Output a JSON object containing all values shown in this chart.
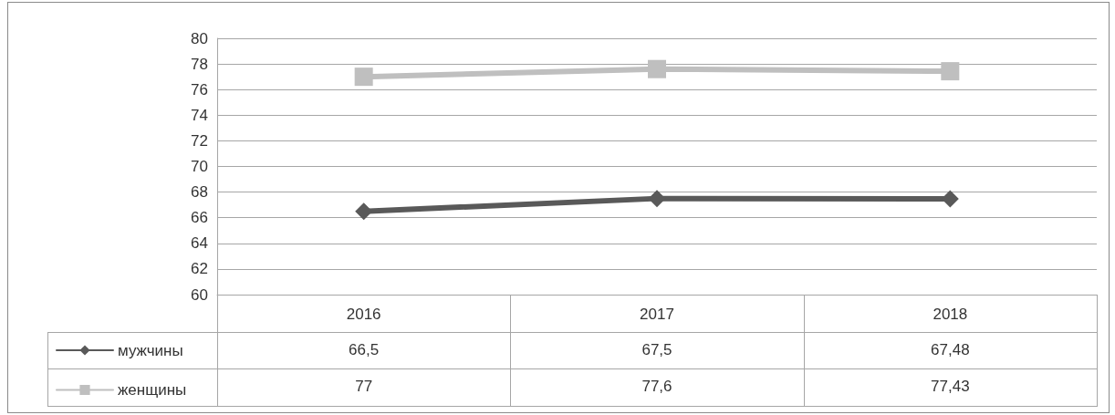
{
  "chart_data": {
    "type": "line",
    "categories": [
      "2016",
      "2017",
      "2018"
    ],
    "series": [
      {
        "name": "мужчины",
        "color": "#595959",
        "marker": "diamond",
        "values": [
          66.5,
          67.5,
          67.48
        ],
        "value_labels": [
          "66,5",
          "67,5",
          "67,48"
        ]
      },
      {
        "name": "женщины",
        "color": "#bfbfbf",
        "marker": "square",
        "values": [
          77,
          77.6,
          77.43
        ],
        "value_labels": [
          "77",
          "77,6",
          "77,43"
        ]
      }
    ],
    "ylim": [
      60,
      80
    ],
    "yticks": [
      60,
      62,
      64,
      66,
      68,
      70,
      72,
      74,
      76,
      78,
      80
    ],
    "grid": "y",
    "legend": "bottom left"
  }
}
